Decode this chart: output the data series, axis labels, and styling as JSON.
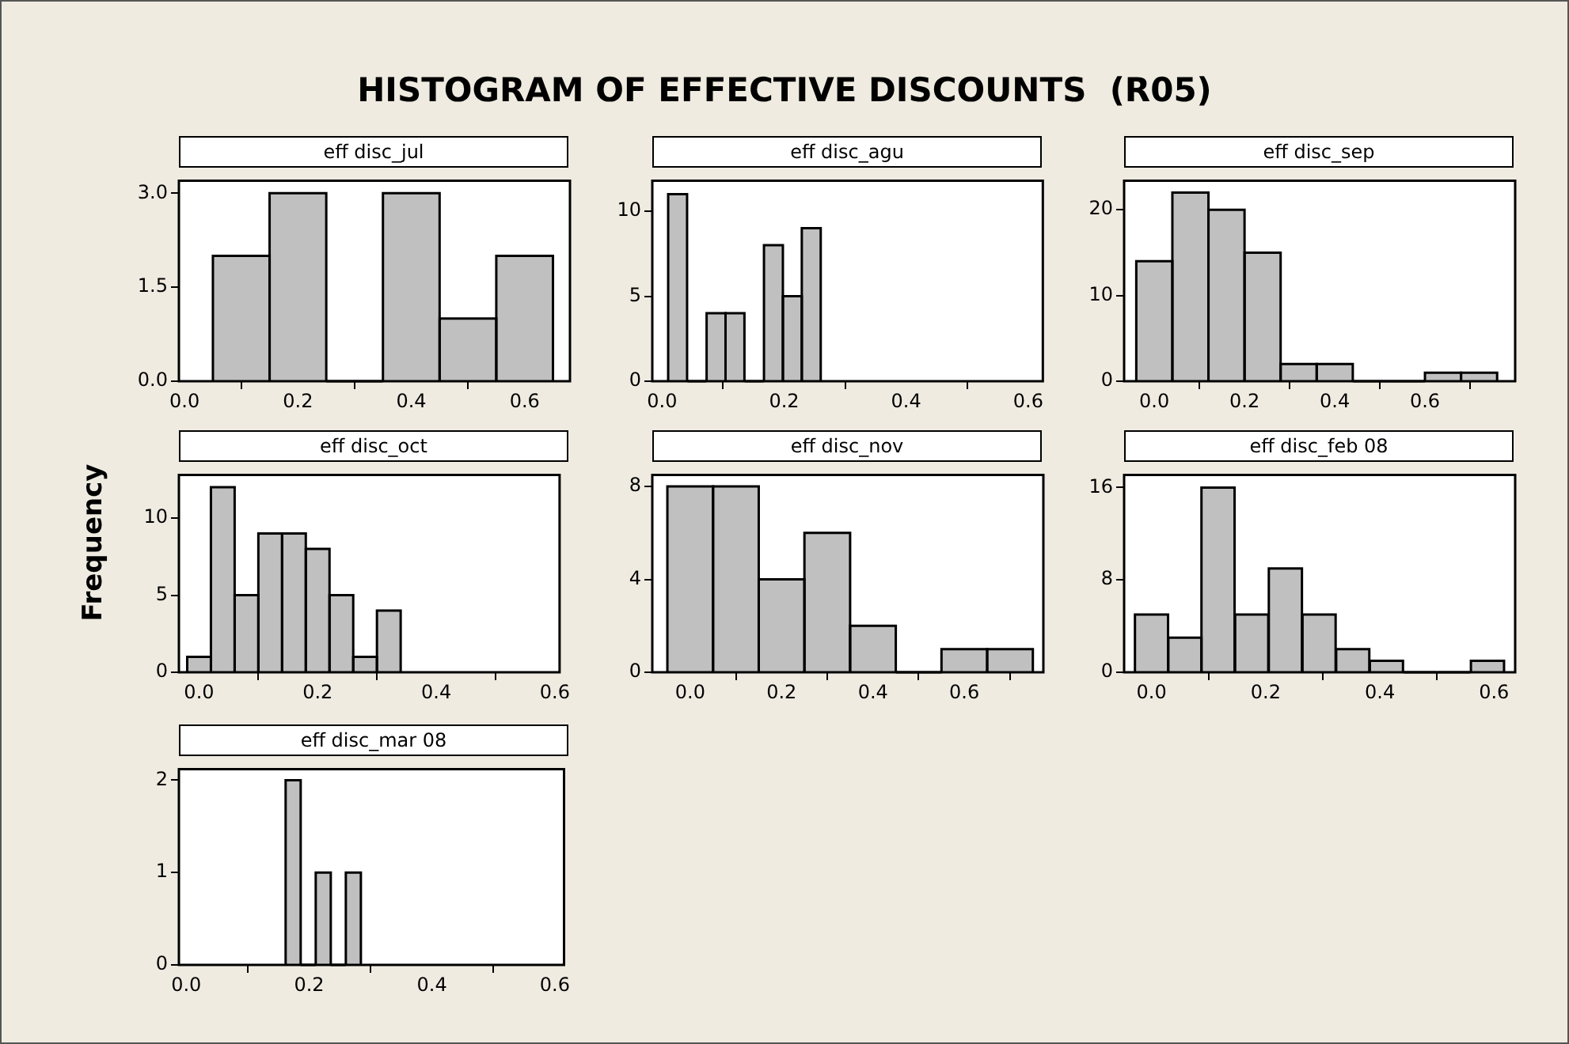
{
  "chart_data": [
    {
      "type": "histogram",
      "title": "eff disc_jul",
      "annotations": [
        "HISTOGRAM OF EFFECTIVE DISCOUNTS  (R05)"
      ],
      "bins": [
        0.05,
        0.15,
        0.25,
        0.35,
        0.45,
        0.55,
        0.65
      ],
      "values": [
        2,
        3,
        0,
        3,
        1,
        2
      ],
      "color": "#c0c0c0",
      "xlim": [
        -0.01,
        0.68
      ],
      "xticks": [
        {
          "value": 0,
          "label": "0.0"
        },
        {
          "value": 0.2,
          "label": "0.2"
        },
        {
          "value": 0.4,
          "label": "0.4"
        },
        {
          "value": 0.6,
          "label": "0.6"
        }
      ],
      "ylim": [
        0,
        3.2
      ],
      "yticks": [
        {
          "value": 0,
          "label": "0.0"
        },
        {
          "value": 1.5,
          "label": "1.5"
        },
        {
          "value": 3,
          "label": "3.0"
        }
      ]
    },
    {
      "type": "histogram",
      "title": "eff disc_agu",
      "bins": [
        0.01,
        0.041,
        0.073,
        0.104,
        0.135,
        0.167,
        0.198,
        0.229,
        0.26
      ],
      "values": [
        11,
        0,
        4,
        4,
        0,
        8,
        5,
        9
      ],
      "color": "#c0c0c0",
      "xlim": [
        -0.016,
        0.624
      ],
      "xticks": [
        {
          "value": 0,
          "label": "0.0"
        },
        {
          "value": 0.2,
          "label": "0.2"
        },
        {
          "value": 0.4,
          "label": "0.4"
        },
        {
          "value": 0.6,
          "label": "0.6"
        }
      ],
      "ylim": [
        0,
        11.8
      ],
      "yticks": [
        0,
        5,
        10
      ]
    },
    {
      "type": "histogram",
      "title": "eff disc_sep",
      "bins": [
        -0.04,
        0.04,
        0.12,
        0.2,
        0.28,
        0.36,
        0.44,
        0.52,
        0.6,
        0.68,
        0.76
      ],
      "values": [
        14,
        22,
        20,
        15,
        2,
        2,
        0,
        0,
        1,
        1
      ],
      "color": "#c0c0c0",
      "xlim": [
        -0.067,
        0.8
      ],
      "xticks": [
        {
          "value": 0,
          "label": "0.0"
        },
        {
          "value": 0.2,
          "label": "0.2"
        },
        {
          "value": 0.4,
          "label": "0.4"
        },
        {
          "value": 0.6,
          "label": "0.6"
        }
      ],
      "ylim": [
        0,
        23.4
      ],
      "yticks": [
        0,
        10,
        20
      ]
    },
    {
      "type": "histogram",
      "title": "eff disc_oct",
      "ylabel": "Frequency",
      "bins": [
        -0.02,
        0.02,
        0.06,
        0.1,
        0.14,
        0.18,
        0.22,
        0.26,
        0.3,
        0.34
      ],
      "values": [
        1,
        12,
        5,
        9,
        9,
        8,
        5,
        1,
        4
      ],
      "color": "#c0c0c0",
      "xlim": [
        -0.034,
        0.608
      ],
      "xticks": [
        {
          "value": 0,
          "label": "0.0"
        },
        {
          "value": 0.2,
          "label": "0.2"
        },
        {
          "value": 0.4,
          "label": "0.4"
        },
        {
          "value": 0.6,
          "label": "0.6"
        }
      ],
      "ylim": [
        0,
        12.8
      ],
      "yticks": [
        0,
        5,
        10
      ]
    },
    {
      "type": "histogram",
      "title": "eff disc_nov",
      "bins": [
        -0.05,
        0.05,
        0.15,
        0.25,
        0.35,
        0.45,
        0.55,
        0.65,
        0.75
      ],
      "values": [
        8,
        8,
        4,
        6,
        2,
        0,
        1,
        1
      ],
      "color": "#c0c0c0",
      "xlim": [
        -0.083,
        0.773
      ],
      "xticks": [
        {
          "value": 0,
          "label": "0.0"
        },
        {
          "value": 0.2,
          "label": "0.2"
        },
        {
          "value": 0.4,
          "label": "0.4"
        },
        {
          "value": 0.6,
          "label": "0.6"
        }
      ],
      "ylim": [
        0,
        8.5
      ],
      "yticks": [
        0,
        4,
        8
      ]
    },
    {
      "type": "histogram",
      "title": "eff disc_feb 08",
      "bins": [
        -0.03,
        0.03,
        0.087,
        0.146,
        0.205,
        0.264,
        0.323,
        0.382,
        0.441,
        0.5,
        0.559,
        0.618
      ],
      "values": [
        5,
        3,
        16,
        5,
        9,
        5,
        2,
        1,
        0,
        0,
        1
      ],
      "color": "#c0c0c0",
      "xlim": [
        -0.048,
        0.637
      ],
      "xticks": [
        {
          "value": 0,
          "label": "0.0"
        },
        {
          "value": 0.2,
          "label": "0.2"
        },
        {
          "value": 0.4,
          "label": "0.4"
        },
        {
          "value": 0.6,
          "label": "0.6"
        }
      ],
      "ylim": [
        0,
        17.1
      ],
      "yticks": [
        0,
        8,
        16
      ]
    },
    {
      "type": "histogram",
      "title": "eff disc_mar 08",
      "bins": [
        0.162,
        0.186,
        0.211,
        0.235,
        0.26,
        0.284
      ],
      "values": [
        2,
        0,
        1,
        0,
        1
      ],
      "color": "#c0c0c0",
      "xlim": [
        -0.012,
        0.615
      ],
      "xticks": [
        {
          "value": 0,
          "label": "0.0"
        },
        {
          "value": 0.2,
          "label": "0.2"
        },
        {
          "value": 0.4,
          "label": "0.4"
        },
        {
          "value": 0.6,
          "label": "0.6"
        }
      ],
      "ylim": [
        0,
        2.12
      ],
      "yticks": [
        0,
        1,
        2
      ]
    }
  ]
}
